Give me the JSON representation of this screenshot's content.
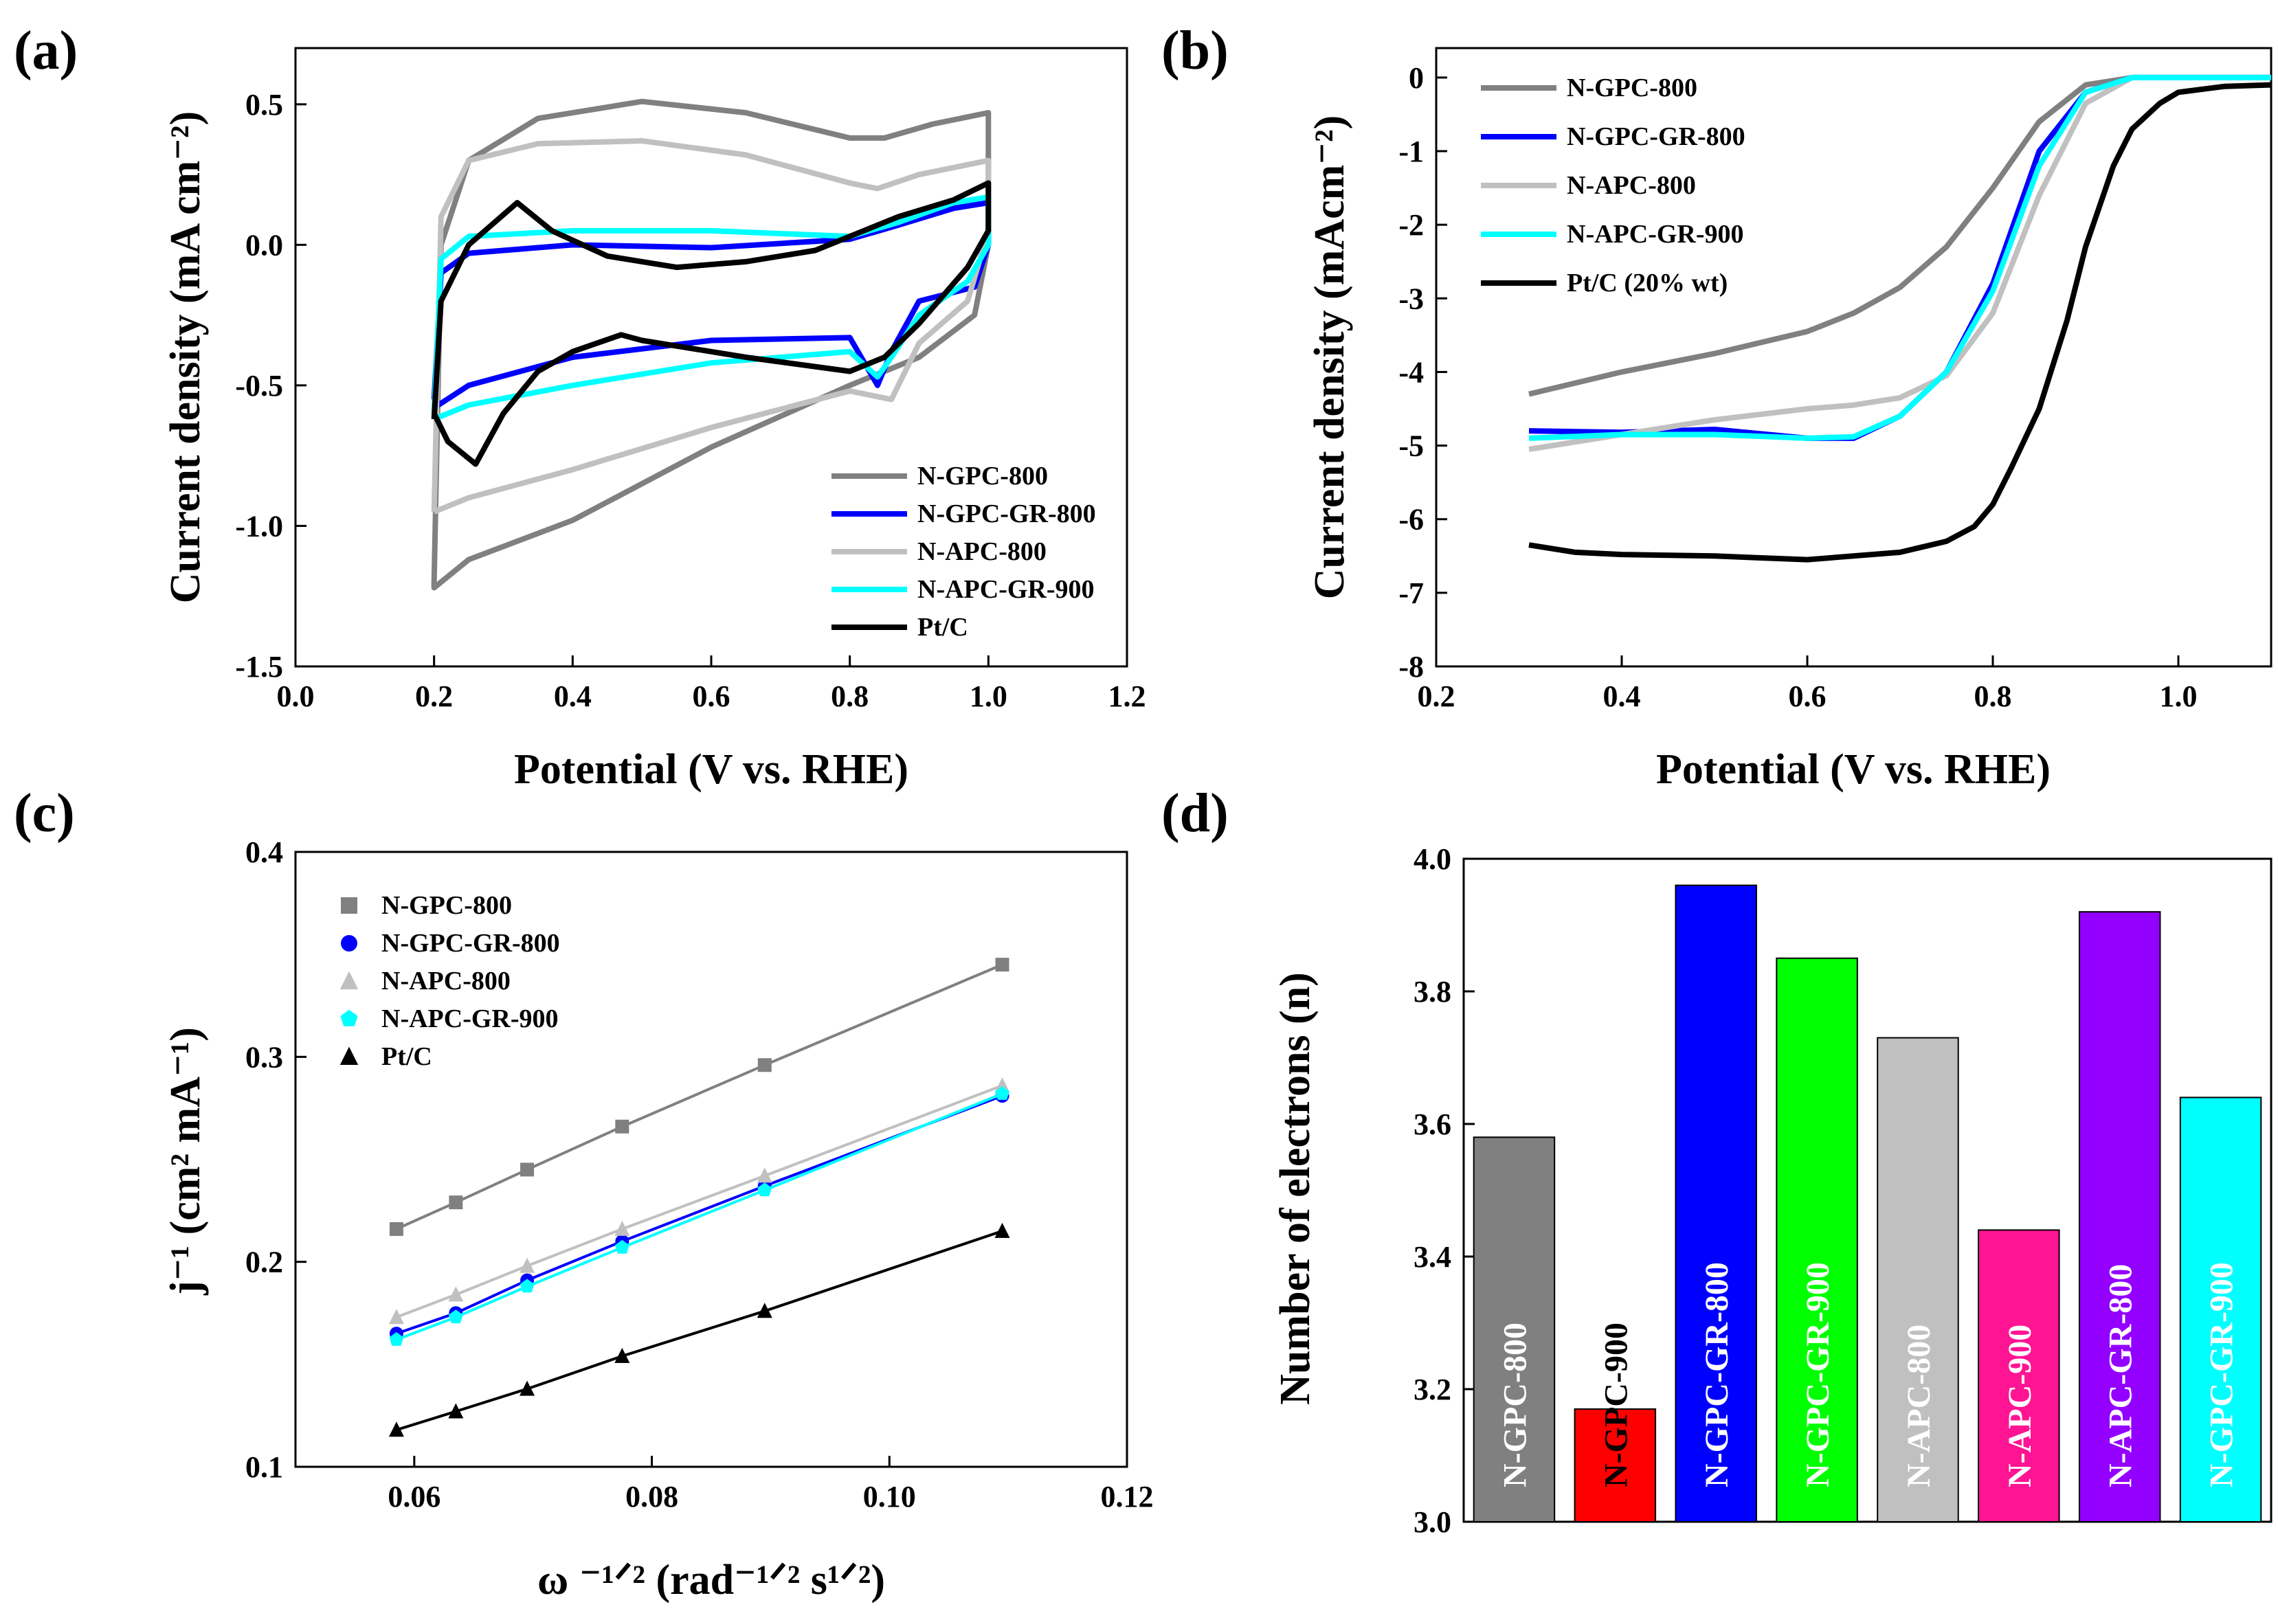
{
  "figure_title": "",
  "panels": [
    "(a)",
    "(b)",
    "(c)",
    "(d)"
  ],
  "colors": {
    "N-GPC-800": "#808080",
    "N-GPC-GR-800": "#0000ff",
    "N-APC-800": "#c0c0c0",
    "N-APC-GR-900": "#00ffff",
    "Pt/C": "#000000"
  },
  "chart_data": [
    {
      "panel": "(a)",
      "type": "line",
      "title": "",
      "xlabel": "Potential (V vs. RHE)",
      "ylabel": "Current density (mA cm⁻²)",
      "xlim": [
        0.0,
        1.2
      ],
      "ylim": [
        -1.5,
        0.7
      ],
      "xticks": [
        "0.0",
        "0.2",
        "0.4",
        "0.6",
        "0.8",
        "1.0",
        "1.2"
      ],
      "yticks": [
        "-1.5",
        "-1.0",
        "-0.5",
        "0.0",
        "0.5"
      ],
      "legend_position": "bottom-right",
      "series": [
        {
          "name": "N-GPC-800",
          "x": [
            0.2,
            0.21,
            0.25,
            0.35,
            0.5,
            0.65,
            0.8,
            0.85,
            0.92,
            1.0,
            1.0,
            0.98,
            0.9,
            0.8,
            0.6,
            0.4,
            0.25,
            0.2,
            0.2
          ],
          "y": [
            -1.2,
            0.0,
            0.3,
            0.45,
            0.51,
            0.47,
            0.38,
            0.38,
            0.43,
            0.47,
            0.0,
            -0.25,
            -0.4,
            -0.5,
            -0.72,
            -0.98,
            -1.12,
            -1.22,
            -1.2
          ]
        },
        {
          "name": "N-GPC-GR-800",
          "x": [
            0.2,
            0.21,
            0.25,
            0.4,
            0.6,
            0.8,
            0.87,
            0.95,
            1.0,
            1.0,
            0.98,
            0.9,
            0.86,
            0.84,
            0.8,
            0.6,
            0.4,
            0.25,
            0.2
          ],
          "y": [
            -0.55,
            -0.1,
            -0.03,
            0.0,
            -0.01,
            0.02,
            0.07,
            0.13,
            0.15,
            0.0,
            -0.15,
            -0.2,
            -0.38,
            -0.5,
            -0.33,
            -0.34,
            -0.4,
            -0.5,
            -0.58
          ]
        },
        {
          "name": "N-APC-800",
          "x": [
            0.2,
            0.21,
            0.25,
            0.35,
            0.5,
            0.65,
            0.8,
            0.84,
            0.9,
            1.0,
            1.0,
            0.97,
            0.9,
            0.86,
            0.8,
            0.6,
            0.4,
            0.25,
            0.2
          ],
          "y": [
            -0.95,
            0.1,
            0.3,
            0.36,
            0.37,
            0.32,
            0.22,
            0.2,
            0.25,
            0.3,
            0.05,
            -0.2,
            -0.35,
            -0.55,
            -0.52,
            -0.65,
            -0.8,
            -0.9,
            -0.95
          ]
        },
        {
          "name": "N-APC-GR-900",
          "x": [
            0.2,
            0.21,
            0.25,
            0.4,
            0.6,
            0.8,
            0.87,
            0.95,
            1.0,
            1.0,
            0.97,
            0.9,
            0.86,
            0.84,
            0.8,
            0.6,
            0.4,
            0.25,
            0.2
          ],
          "y": [
            -0.6,
            -0.05,
            0.03,
            0.05,
            0.05,
            0.03,
            0.08,
            0.15,
            0.17,
            0.0,
            -0.13,
            -0.25,
            -0.4,
            -0.47,
            -0.38,
            -0.42,
            -0.5,
            -0.57,
            -0.62
          ]
        },
        {
          "name": "Pt/C",
          "x": [
            0.2,
            0.21,
            0.25,
            0.32,
            0.37,
            0.45,
            0.55,
            0.65,
            0.75,
            0.82,
            0.87,
            0.95,
            1.0,
            1.0,
            0.97,
            0.9,
            0.85,
            0.8,
            0.65,
            0.5,
            0.47,
            0.4,
            0.35,
            0.3,
            0.26,
            0.22,
            0.2
          ],
          "y": [
            -0.62,
            -0.2,
            0.0,
            0.15,
            0.05,
            -0.04,
            -0.08,
            -0.06,
            -0.02,
            0.05,
            0.1,
            0.16,
            0.22,
            0.05,
            -0.08,
            -0.28,
            -0.4,
            -0.45,
            -0.4,
            -0.34,
            -0.32,
            -0.38,
            -0.45,
            -0.6,
            -0.78,
            -0.7,
            -0.6
          ]
        }
      ]
    },
    {
      "panel": "(b)",
      "type": "line",
      "title": "",
      "xlabel": "Potential (V vs. RHE)",
      "ylabel": "Current density (mAcm⁻²)",
      "xlim": [
        0.2,
        1.1
      ],
      "ylim": [
        -8,
        0.4
      ],
      "xticks": [
        "0.2",
        "0.4",
        "0.6",
        "0.8",
        "1.0"
      ],
      "yticks": [
        "0",
        "-1",
        "-2",
        "-3",
        "-4",
        "-5",
        "-6",
        "-7",
        "-8"
      ],
      "legend_position": "top-left",
      "series": [
        {
          "name": "N-GPC-800",
          "x": [
            0.3,
            0.4,
            0.5,
            0.6,
            0.65,
            0.7,
            0.75,
            0.8,
            0.85,
            0.9,
            0.95,
            1.0,
            1.1
          ],
          "y": [
            -4.3,
            -4.0,
            -3.75,
            -3.45,
            -3.2,
            -2.85,
            -2.3,
            -1.5,
            -0.6,
            -0.1,
            0.0,
            0.0,
            0.0
          ]
        },
        {
          "name": "N-GPC-GR-800",
          "x": [
            0.3,
            0.4,
            0.5,
            0.6,
            0.65,
            0.7,
            0.75,
            0.8,
            0.85,
            0.9,
            0.95,
            1.0,
            1.1
          ],
          "y": [
            -4.8,
            -4.82,
            -4.78,
            -4.9,
            -4.9,
            -4.6,
            -4.0,
            -2.8,
            -1.0,
            -0.2,
            0.0,
            0.0,
            0.0
          ]
        },
        {
          "name": "N-APC-800",
          "x": [
            0.3,
            0.4,
            0.5,
            0.6,
            0.65,
            0.7,
            0.75,
            0.8,
            0.85,
            0.9,
            0.95,
            1.0,
            1.1
          ],
          "y": [
            -5.05,
            -4.85,
            -4.65,
            -4.5,
            -4.45,
            -4.35,
            -4.05,
            -3.2,
            -1.6,
            -0.35,
            0.0,
            0.0,
            0.0
          ]
        },
        {
          "name": "N-APC-GR-900",
          "x": [
            0.3,
            0.4,
            0.5,
            0.6,
            0.65,
            0.7,
            0.75,
            0.8,
            0.85,
            0.9,
            0.95,
            1.0,
            1.1
          ],
          "y": [
            -4.9,
            -4.85,
            -4.85,
            -4.9,
            -4.88,
            -4.6,
            -4.0,
            -2.9,
            -1.2,
            -0.2,
            0.0,
            0.0,
            0.0
          ]
        },
        {
          "name": "Pt/C (20% wt)",
          "x": [
            0.3,
            0.35,
            0.4,
            0.5,
            0.6,
            0.7,
            0.75,
            0.78,
            0.8,
            0.82,
            0.85,
            0.88,
            0.9,
            0.93,
            0.95,
            0.98,
            1.0,
            1.05,
            1.1
          ],
          "y": [
            -6.35,
            -6.45,
            -6.48,
            -6.5,
            -6.55,
            -6.45,
            -6.3,
            -6.1,
            -5.8,
            -5.3,
            -4.5,
            -3.3,
            -2.3,
            -1.2,
            -0.7,
            -0.35,
            -0.2,
            -0.12,
            -0.1
          ]
        }
      ]
    },
    {
      "panel": "(c)",
      "type": "scatter",
      "title": "",
      "xlabel": "ω ⁻¹ᐟ² (rad⁻¹ᐟ² s¹ᐟ²)",
      "ylabel": "j⁻¹ (cm² mA⁻¹)",
      "xlim": [
        0.05,
        0.12
      ],
      "ylim": [
        0.1,
        0.4
      ],
      "xticks": [
        "0.06",
        "0.08",
        "0.10",
        "0.12"
      ],
      "yticks": [
        "0.1",
        "0.2",
        "0.3",
        "0.4"
      ],
      "legend_position": "top-left",
      "x": [
        0.0585,
        0.0635,
        0.0695,
        0.0775,
        0.0895,
        0.1095
      ],
      "series": [
        {
          "name": "N-GPC-800",
          "marker": "square",
          "values": [
            0.216,
            0.229,
            0.245,
            0.266,
            0.296,
            0.345
          ]
        },
        {
          "name": "N-GPC-GR-800",
          "marker": "circle",
          "values": [
            0.165,
            0.175,
            0.191,
            0.21,
            0.237,
            0.281
          ]
        },
        {
          "name": "N-APC-800",
          "marker": "triangle",
          "values": [
            0.173,
            0.184,
            0.198,
            0.216,
            0.242,
            0.286
          ]
        },
        {
          "name": "N-APC-GR-900",
          "marker": "pentagon",
          "values": [
            0.162,
            0.173,
            0.188,
            0.207,
            0.235,
            0.282
          ]
        },
        {
          "name": "Pt/C",
          "marker": "triangle",
          "values": [
            0.118,
            0.127,
            0.138,
            0.154,
            0.176,
            0.215
          ]
        }
      ]
    },
    {
      "panel": "(d)",
      "type": "bar",
      "title": "",
      "xlabel": "",
      "ylabel": "Number of electrons (n)",
      "ylim": [
        3.0,
        4.0
      ],
      "yticks": [
        "3.0",
        "3.2",
        "3.4",
        "3.6",
        "3.8",
        "4.0"
      ],
      "categories": [
        "N-GPC-800",
        "N-GPC-900",
        "N-GPC-GR-800",
        "N-GPC-GR-900",
        "N-APC-800",
        "N-APC-900",
        "N-APC-GR-800",
        "N-GPC-GR-900"
      ],
      "values": [
        3.58,
        3.17,
        3.96,
        3.85,
        3.73,
        3.44,
        3.92,
        3.64
      ],
      "bar_colors": [
        "#808080",
        "#ff0000",
        "#0000ff",
        "#00ff00",
        "#c0c0c0",
        "#ff1493",
        "#9400ff",
        "#00ffff"
      ],
      "label_colors": [
        "#ffffff",
        "#000000",
        "#ffffff",
        "#ffffff",
        "#ffffff",
        "#ffffff",
        "#ffffff",
        "#ffffff"
      ]
    }
  ]
}
